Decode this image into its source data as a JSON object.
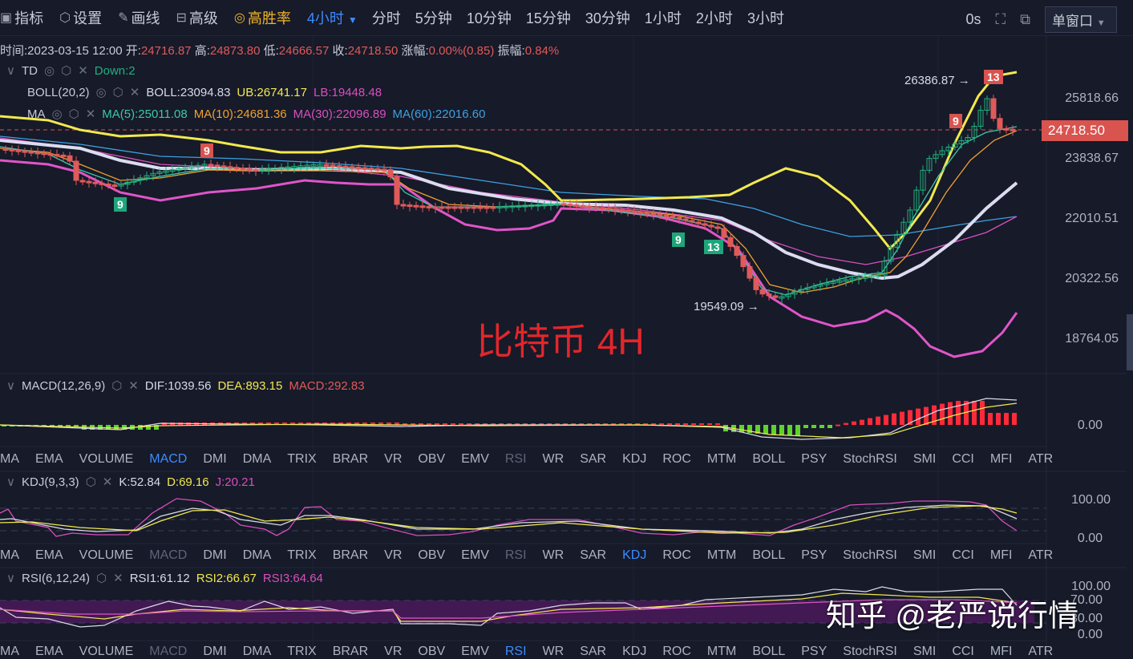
{
  "toolbar": {
    "indicators": "指标",
    "settings": "设置",
    "draw": "画线",
    "advanced": "高级",
    "win_rate": "高胜率",
    "period_selected": "4小时",
    "periods": [
      "分时",
      "5分钟",
      "10分钟",
      "15分钟",
      "30分钟",
      "1小时",
      "2小时",
      "3小时"
    ],
    "countdown": "0s",
    "window_mode": "单窗口"
  },
  "info": {
    "time_label": "时间:",
    "time": "2023-03-15 12:00",
    "open_label": "开:",
    "open": "24716.87",
    "high_label": "高:",
    "high": "24873.80",
    "low_label": "低:",
    "low": "24666.57",
    "close_label": "收:",
    "close": "24718.50",
    "change_label": "涨幅:",
    "change": "0.00%(0.85)",
    "amp_label": "振幅:",
    "amp": "0.84%"
  },
  "td": {
    "name": "TD",
    "value": "Down:2"
  },
  "boll": {
    "name": "BOLL(20,2)",
    "boll": "BOLL:23094.83",
    "ub": "UB:26741.17",
    "lb": "LB:19448.48"
  },
  "ma": {
    "name": "MA",
    "ma5": "MA(5):25011.08",
    "ma10": "MA(10):24681.36",
    "ma30": "MA(30):22096.89",
    "ma60": "MA(60):22016.60"
  },
  "price_axis": [
    "25818.66",
    "23838.67",
    "22010.51",
    "20322.56",
    "18764.05"
  ],
  "current_price": "24718.50",
  "annotations": {
    "high": "26386.87 →",
    "low": "19549.09 →",
    "td_marks": [
      "9",
      "9",
      "9",
      "13",
      "9",
      "13"
    ]
  },
  "watermark": "比特币 4H",
  "credit": "知乎 @老严说行情",
  "macd": {
    "name": "MACD(12,26,9)",
    "dif": "DIF:1039.56",
    "dea": "DEA:893.15",
    "macd": "MACD:292.83",
    "axis": [
      "0.00"
    ]
  },
  "kdj": {
    "name": "KDJ(9,3,3)",
    "k": "K:52.84",
    "d": "D:69.16",
    "j": "J:20.21",
    "axis": [
      "100.00",
      "0.00"
    ]
  },
  "rsi": {
    "name": "RSI(6,12,24)",
    "r1": "RSI1:61.12",
    "r2": "RSI2:66.67",
    "r3": "RSI3:64.64",
    "axis": [
      "100.00",
      "70.00",
      "30.00",
      "0.00"
    ]
  },
  "indicator_tabs": [
    "MA",
    "EMA",
    "VOLUME",
    "MACD",
    "DMI",
    "DMA",
    "TRIX",
    "BRAR",
    "VR",
    "OBV",
    "EMV",
    "RSI",
    "WR",
    "SAR",
    "KDJ",
    "ROC",
    "MTM",
    "BOLL",
    "PSY",
    "StochRSI",
    "SMI",
    "CCI",
    "MFI",
    "ATR"
  ],
  "colors": {
    "up": "#22b07d",
    "down": "#e05a5a",
    "background": "#161a29",
    "accent": "#3d8bfd"
  }
}
